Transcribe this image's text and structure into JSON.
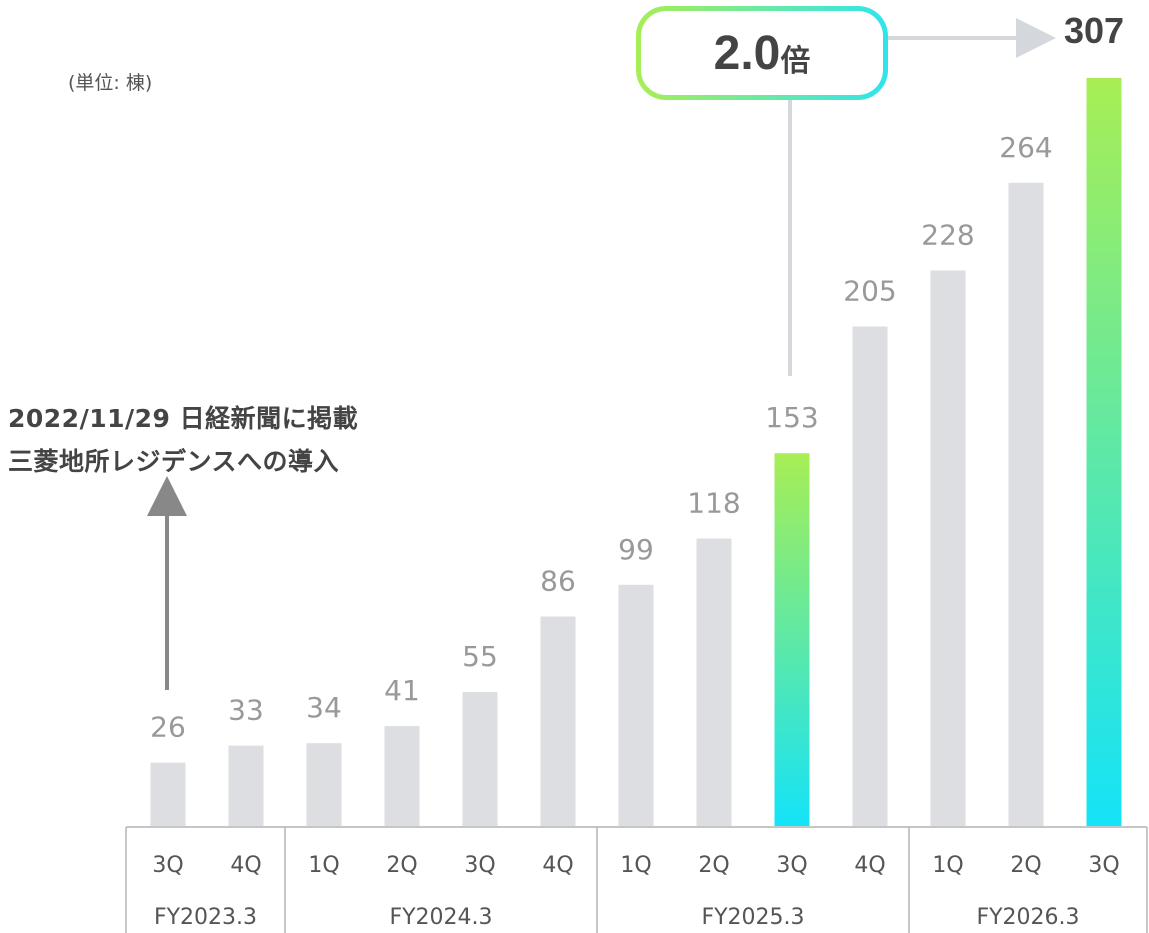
{
  "unit_label": "(単位: 棟)",
  "annotation": {
    "line1": "2022/11/29 日経新聞に掲載",
    "line2": "三菱地所レジデンスへの導入"
  },
  "callout": {
    "ratio_value": "2.0",
    "ratio_unit": "倍",
    "final_value": "307"
  },
  "colors": {
    "bar": "#dcdee2",
    "highlight_top": "#a8ee54",
    "highlight_bottom": "#14e3f8",
    "value_label": "#999999",
    "axis_line": "#b4b4b4",
    "axis_text": "#555555"
  },
  "chart_data": {
    "type": "bar",
    "categories": [
      "3Q",
      "4Q",
      "1Q",
      "2Q",
      "3Q",
      "4Q",
      "1Q",
      "2Q",
      "3Q",
      "4Q",
      "1Q",
      "2Q",
      "3Q"
    ],
    "values": [
      26,
      33,
      34,
      41,
      55,
      86,
      99,
      118,
      153,
      205,
      228,
      264,
      307
    ],
    "highlighted": [
      false,
      false,
      false,
      false,
      false,
      false,
      false,
      false,
      true,
      false,
      false,
      false,
      true
    ],
    "groups": [
      {
        "label": "FY2023.3",
        "count": 2
      },
      {
        "label": "FY2024.3",
        "count": 4
      },
      {
        "label": "FY2025.3",
        "count": 4
      },
      {
        "label": "FY2026.3",
        "count": 3
      }
    ],
    "ylim": [
      0,
      307
    ],
    "grid": false,
    "legend": "none"
  }
}
